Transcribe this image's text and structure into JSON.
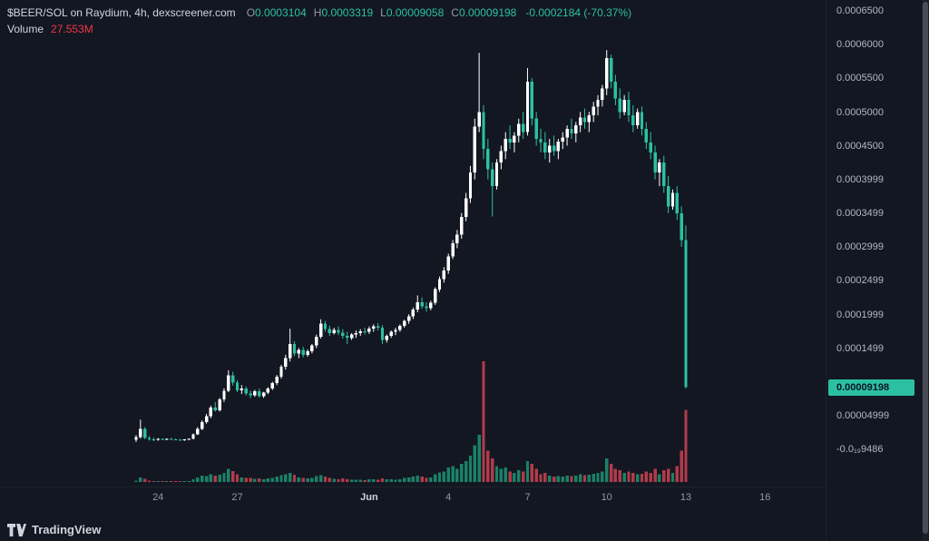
{
  "colors": {
    "background": "#131722",
    "text_primary": "#d1d4dc",
    "text_secondary": "#9598a1",
    "axis_text": "#b2b7c3",
    "candle_up": "#ffffff",
    "candle_down": "#2cc0a2",
    "volume_up": "#1a8266",
    "volume_down": "#b23b4a",
    "volume_value": "#f23645",
    "ohlc_value": "#2cc0a2",
    "price_tag_bg": "#2cc0a2",
    "price_tag_text": "#0c1420"
  },
  "legend": {
    "title": "$BEER/SOL on Raydium, 4h, dexscreener.com",
    "ohlc": [
      {
        "label": "O",
        "value": "0.0003104"
      },
      {
        "label": "H",
        "value": "0.0003319"
      },
      {
        "label": "L",
        "value": "0.00009058"
      },
      {
        "label": "C",
        "value": "0.00009198"
      }
    ],
    "change": "-0.0002184 (-70.37%)",
    "volume_label": "Volume",
    "volume_value": "27.553M"
  },
  "price_axis": {
    "labels": [
      {
        "text": "0.0006500",
        "value": 6500
      },
      {
        "text": "0.0006000",
        "value": 6000
      },
      {
        "text": "0.0005500",
        "value": 5500
      },
      {
        "text": "0.0005000",
        "value": 5000
      },
      {
        "text": "0.0004500",
        "value": 4500
      },
      {
        "text": "0.0003999",
        "value": 3999
      },
      {
        "text": "0.0003499",
        "value": 3499
      },
      {
        "text": "0.0002999",
        "value": 2999
      },
      {
        "text": "0.0002499",
        "value": 2499
      },
      {
        "text": "0.0001999",
        "value": 1999
      },
      {
        "text": "0.0001499",
        "value": 1499
      },
      {
        "text": "0.00004999",
        "value": 499.9
      },
      {
        "text": "-0.0₁₉9486",
        "value": 0
      }
    ],
    "current": {
      "text": "0.00009198",
      "value": 919.8
    }
  },
  "time_axis": {
    "ticks": [
      {
        "index": 5,
        "label": "24"
      },
      {
        "index": 23,
        "label": "27"
      },
      {
        "index": 53,
        "label": "Jun",
        "major": true
      },
      {
        "index": 71,
        "label": "4"
      },
      {
        "index": 89,
        "label": "7"
      },
      {
        "index": 107,
        "label": "10"
      },
      {
        "index": 125,
        "label": "13"
      },
      {
        "index": 143,
        "label": "16"
      }
    ]
  },
  "footer": {
    "logo_text": "TradingView"
  },
  "chart_data": {
    "type": "candlestick",
    "title": "$BEER/SOL on Raydium, 4h, dexscreener.com",
    "symbol": "$BEER/SOL",
    "exchange": "Raydium",
    "interval": "4h",
    "source": "dexscreener.com",
    "y_axis_range_price": [
      0,
      0.00065
    ],
    "x_tick_labels": [
      "24",
      "27",
      "Jun",
      "4",
      "7",
      "10",
      "13",
      "16"
    ],
    "last_candle": {
      "open": "0.0003104",
      "high": "0.0003319",
      "low": "0.00009058",
      "close": "0.00009198",
      "change": "-0.0002184 (-70.37%)",
      "volume": "27.553M"
    },
    "price_scale_note": "candle o,h,l,c values are price × 1e7 (e.g. 3104 = 0.0003104)",
    "volume_note": "v is volume in millions of tokens",
    "candles": [
      [
        140,
        210,
        110,
        180,
        0.6
      ],
      [
        180,
        440,
        160,
        300,
        1.8
      ],
      [
        300,
        330,
        150,
        170,
        1.2
      ],
      [
        170,
        195,
        130,
        150,
        0.5
      ],
      [
        150,
        175,
        120,
        140,
        0.3
      ],
      [
        140,
        165,
        128,
        152,
        0.25
      ],
      [
        152,
        160,
        134,
        144,
        0.15
      ],
      [
        144,
        162,
        138,
        156,
        0.2
      ],
      [
        156,
        168,
        144,
        150,
        0.15
      ],
      [
        150,
        158,
        136,
        142,
        0.2
      ],
      [
        142,
        154,
        128,
        138,
        0.3
      ],
      [
        138,
        152,
        126,
        146,
        0.2
      ],
      [
        146,
        162,
        140,
        158,
        0.4
      ],
      [
        158,
        235,
        150,
        222,
        1.0
      ],
      [
        222,
        330,
        212,
        305,
        1.8
      ],
      [
        305,
        430,
        285,
        405,
        2.5
      ],
      [
        405,
        525,
        380,
        492,
        2.2
      ],
      [
        492,
        648,
        462,
        622,
        3.0
      ],
      [
        622,
        700,
        558,
        582,
        2.4
      ],
      [
        582,
        762,
        560,
        738,
        2.8
      ],
      [
        738,
        905,
        702,
        868,
        3.5
      ],
      [
        868,
        1172,
        848,
        1098,
        5.0
      ],
      [
        1098,
        1150,
        945,
        988,
        4.2
      ],
      [
        988,
        1025,
        848,
        878,
        3.0
      ],
      [
        878,
        952,
        820,
        902,
        1.8
      ],
      [
        902,
        932,
        798,
        828,
        1.5
      ],
      [
        828,
        872,
        758,
        798,
        1.6
      ],
      [
        798,
        882,
        778,
        862,
        1.2
      ],
      [
        862,
        902,
        768,
        788,
        1.4
      ],
      [
        788,
        852,
        762,
        842,
        1.0
      ],
      [
        842,
        922,
        818,
        902,
        1.3
      ],
      [
        902,
        1002,
        878,
        982,
        1.6
      ],
      [
        982,
        1102,
        952,
        1078,
        2.0
      ],
      [
        1078,
        1252,
        1048,
        1222,
        2.6
      ],
      [
        1222,
        1402,
        1182,
        1352,
        3.0
      ],
      [
        1352,
        1788,
        1302,
        1562,
        3.4
      ],
      [
        1562,
        1602,
        1382,
        1422,
        2.8
      ],
      [
        1422,
        1502,
        1352,
        1472,
        1.8
      ],
      [
        1472,
        1522,
        1362,
        1402,
        1.5
      ],
      [
        1402,
        1482,
        1372,
        1452,
        1.4
      ],
      [
        1452,
        1562,
        1422,
        1542,
        1.6
      ],
      [
        1542,
        1702,
        1502,
        1672,
        2.2
      ],
      [
        1672,
        1928,
        1642,
        1862,
        2.6
      ],
      [
        1862,
        1902,
        1742,
        1782,
        2.0
      ],
      [
        1782,
        1832,
        1682,
        1722,
        1.6
      ],
      [
        1722,
        1802,
        1702,
        1772,
        1.2
      ],
      [
        1772,
        1822,
        1692,
        1732,
        1.0
      ],
      [
        1732,
        1782,
        1642,
        1682,
        1.4
      ],
      [
        1682,
        1742,
        1562,
        1652,
        1.1
      ],
      [
        1652,
        1722,
        1622,
        1702,
        0.9
      ],
      [
        1702,
        1762,
        1652,
        1722,
        0.8
      ],
      [
        1722,
        1782,
        1682,
        1752,
        0.9
      ],
      [
        1752,
        1802,
        1702,
        1742,
        0.7
      ],
      [
        1742,
        1822,
        1712,
        1792,
        1.0
      ],
      [
        1792,
        1852,
        1742,
        1822,
        1.1
      ],
      [
        1822,
        1872,
        1762,
        1802,
        0.9
      ],
      [
        1802,
        1842,
        1562,
        1622,
        1.4
      ],
      [
        1622,
        1702,
        1582,
        1682,
        1.0
      ],
      [
        1682,
        1762,
        1652,
        1742,
        1.0
      ],
      [
        1742,
        1802,
        1692,
        1772,
        0.9
      ],
      [
        1772,
        1852,
        1742,
        1832,
        1.1
      ],
      [
        1832,
        1922,
        1802,
        1902,
        1.5
      ],
      [
        1902,
        2002,
        1862,
        1972,
        1.7
      ],
      [
        1972,
        2102,
        1932,
        2072,
        2.0
      ],
      [
        2072,
        2282,
        2032,
        2182,
        2.4
      ],
      [
        2182,
        2252,
        2082,
        2122,
        2.0
      ],
      [
        2122,
        2182,
        2042,
        2092,
        1.6
      ],
      [
        2092,
        2202,
        2062,
        2172,
        1.8
      ],
      [
        2172,
        2402,
        2142,
        2372,
        3.0
      ],
      [
        2372,
        2562,
        2332,
        2522,
        3.6
      ],
      [
        2522,
        2702,
        2472,
        2652,
        4.0
      ],
      [
        2652,
        2902,
        2602,
        2862,
        5.5
      ],
      [
        2862,
        3102,
        2822,
        3052,
        6.0
      ],
      [
        3052,
        3252,
        2982,
        3182,
        5.0
      ],
      [
        3182,
        3502,
        3122,
        3442,
        7.0
      ],
      [
        3442,
        3802,
        3382,
        3722,
        8.0
      ],
      [
        3722,
        4202,
        3652,
        4102,
        10.0
      ],
      [
        4102,
        4902,
        4002,
        4782,
        14.0
      ],
      [
        4782,
        5878,
        4702,
        5002,
        18.0
      ],
      [
        5002,
        5102,
        4302,
        4452,
        46.0
      ],
      [
        4452,
        4602,
        4002,
        4152,
        12.0
      ],
      [
        4152,
        4252,
        3452,
        3902,
        9.0
      ],
      [
        3902,
        4302,
        3852,
        4252,
        6.0
      ],
      [
        4252,
        4502,
        4152,
        4422,
        5.0
      ],
      [
        4422,
        4702,
        4302,
        4602,
        5.5
      ],
      [
        4602,
        4802,
        4452,
        4552,
        4.0
      ],
      [
        4552,
        4702,
        4402,
        4652,
        3.5
      ],
      [
        4652,
        4902,
        4552,
        4822,
        4.5
      ],
      [
        4822,
        5002,
        4602,
        4702,
        4.0
      ],
      [
        4702,
        5652,
        4652,
        5452,
        8.0
      ],
      [
        5452,
        5502,
        4802,
        4902,
        7.0
      ],
      [
        4902,
        5002,
        4502,
        4602,
        5.0
      ],
      [
        4602,
        4752,
        4402,
        4552,
        3.0
      ],
      [
        4552,
        4702,
        4302,
        4402,
        3.5
      ],
      [
        4402,
        4602,
        4252,
        4502,
        2.5
      ],
      [
        4502,
        4652,
        4352,
        4422,
        2.0
      ],
      [
        4422,
        4602,
        4302,
        4562,
        2.2
      ],
      [
        4562,
        4702,
        4452,
        4622,
        2.0
      ],
      [
        4622,
        4802,
        4502,
        4752,
        2.5
      ],
      [
        4752,
        4902,
        4602,
        4682,
        2.2
      ],
      [
        4682,
        4852,
        4552,
        4802,
        2.4
      ],
      [
        4802,
        5002,
        4702,
        4922,
        3.0
      ],
      [
        4922,
        5052,
        4752,
        4852,
        2.6
      ],
      [
        4852,
        5002,
        4702,
        4952,
        2.8
      ],
      [
        4952,
        5152,
        4852,
        5082,
        3.2
      ],
      [
        5082,
        5252,
        4952,
        5182,
        3.5
      ],
      [
        5182,
        5402,
        5082,
        5352,
        4.0
      ],
      [
        5352,
        5918,
        5252,
        5802,
        9.0
      ],
      [
        5802,
        5852,
        5352,
        5452,
        7.0
      ],
      [
        5452,
        5552,
        5102,
        5202,
        5.0
      ],
      [
        5202,
        5352,
        4902,
        5002,
        4.5
      ],
      [
        5002,
        5252,
        4952,
        5182,
        3.5
      ],
      [
        5182,
        5302,
        4852,
        4952,
        4.0
      ],
      [
        4952,
        5102,
        4702,
        4802,
        3.5
      ],
      [
        4802,
        5052,
        4752,
        5002,
        3.0
      ],
      [
        5002,
        5082,
        4652,
        4752,
        3.2
      ],
      [
        4752,
        4852,
        4452,
        4552,
        4.0
      ],
      [
        4552,
        4702,
        4302,
        4402,
        3.5
      ],
      [
        4402,
        4502,
        4002,
        4102,
        5.0
      ],
      [
        4102,
        4302,
        3902,
        4252,
        3.0
      ],
      [
        4252,
        4352,
        3802,
        3902,
        4.5
      ],
      [
        3902,
        4052,
        3502,
        3602,
        5.0
      ],
      [
        3602,
        3852,
        3552,
        3802,
        3.5
      ],
      [
        3802,
        3902,
        3402,
        3502,
        6.0
      ],
      [
        3502,
        3602,
        3002,
        3104,
        12.0
      ],
      [
        3104,
        3319,
        905.8,
        919.8,
        27.553
      ]
    ]
  }
}
